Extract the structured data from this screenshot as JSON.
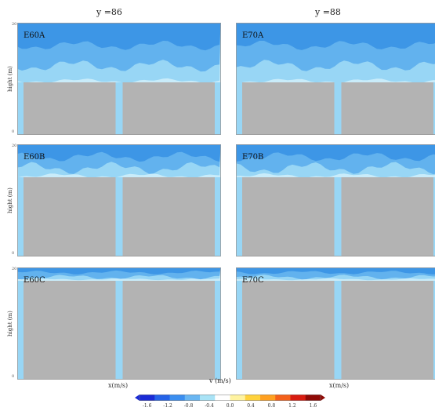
{
  "column_titles": [
    "y =86",
    "y =88"
  ],
  "panels": [
    {
      "label": "E60A",
      "col": 0,
      "row": 0,
      "ground": 0.48
    },
    {
      "label": "E70A",
      "col": 1,
      "row": 0,
      "ground": 0.48
    },
    {
      "label": "E60B",
      "col": 0,
      "row": 1,
      "ground": 0.72
    },
    {
      "label": "E70B",
      "col": 1,
      "row": 1,
      "ground": 0.72
    },
    {
      "label": "E60C",
      "col": 0,
      "row": 2,
      "ground": 0.9
    },
    {
      "label": "E70C",
      "col": 1,
      "row": 2,
      "ground": 0.9
    }
  ],
  "y_axis_label": "hight (m)",
  "y_ticks": [
    "20",
    "0"
  ],
  "x_axis_label": "x(m/s)",
  "colorbar": {
    "title": "v (m/s)",
    "ticks": [
      "-1.6",
      "-1.2",
      "-0.8",
      "-0.4",
      "0.0",
      "0.4",
      "0.8",
      "1.2",
      "1.6"
    ],
    "colors": [
      "#1a2bd6",
      "#2563e8",
      "#3b8ef0",
      "#69b6f2",
      "#a9e3f6",
      "#ffffff",
      "#fff3a0",
      "#ffd23c",
      "#ffa020",
      "#f4601a",
      "#d81c10",
      "#8f0a06"
    ]
  },
  "colors": {
    "building": "#b3b3b3",
    "band_dark": "#3d96e6",
    "band_mid": "#62b2ee",
    "band_light": "#98d6f5",
    "band_pale": "#c9ecfa"
  }
}
